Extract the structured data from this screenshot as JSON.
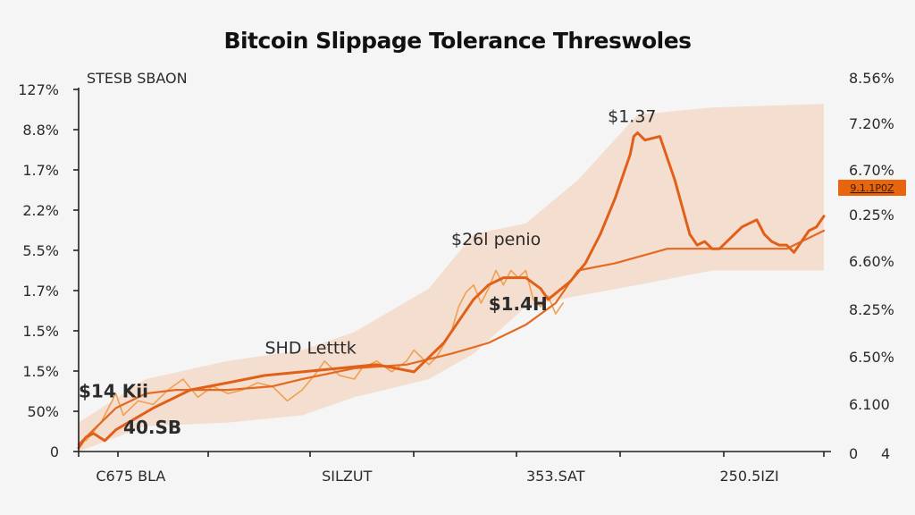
{
  "chart_data": {
    "type": "line",
    "title": "Bitcoin Slippage Tolerance Threswoles",
    "series_label": "STESB SBAON",
    "xlabel": "",
    "ylabel": "",
    "grid": false,
    "y_left_ticks": [
      "127%",
      "8.8%",
      "1.7%",
      "2.2%",
      "5.5%",
      "1.7%",
      "1.5%",
      "1.5%",
      "50%",
      "0"
    ],
    "y_right_ticks": [
      "8.56%",
      "7.20%",
      "6.70%",
      "0.25%",
      "6.60%",
      "8.25%",
      "6.50%",
      "6.100",
      "0"
    ],
    "y_right_extra": "4",
    "x_ticks": [
      "",
      "",
      "",
      "",
      "",
      "",
      "",
      "",
      ""
    ],
    "x_labels": [
      {
        "text": "C675 BLA",
        "at": 0.07
      },
      {
        "text": "SILZUT",
        "at": 0.36
      },
      {
        "text": "353.SAT",
        "at": 0.64
      },
      {
        "text": "250.5IZI",
        "at": 0.9
      }
    ],
    "x_range": [
      0,
      1
    ],
    "y_range": [
      0,
      1
    ],
    "series": [
      {
        "name": "trend",
        "role": "smoothed",
        "x": [
          0,
          0.02,
          0.05,
          0.09,
          0.13,
          0.2,
          0.26,
          0.3,
          0.37,
          0.44,
          0.5,
          0.55,
          0.6,
          0.64,
          0.67,
          0.72,
          0.79,
          0.84,
          0.92,
          0.95,
          1.0
        ],
        "y": [
          0.02,
          0.06,
          0.12,
          0.16,
          0.17,
          0.17,
          0.18,
          0.2,
          0.23,
          0.24,
          0.27,
          0.3,
          0.35,
          0.41,
          0.5,
          0.52,
          0.56,
          0.56,
          0.56,
          0.56,
          0.61
        ]
      },
      {
        "name": "price",
        "role": "primary",
        "x": [
          0,
          0.01,
          0.02,
          0.035,
          0.05,
          0.1,
          0.15,
          0.2,
          0.25,
          0.3,
          0.35,
          0.4,
          0.45,
          0.47,
          0.49,
          0.51,
          0.53,
          0.55,
          0.57,
          0.6,
          0.62,
          0.63,
          0.66,
          0.68,
          0.7,
          0.72,
          0.74,
          0.745,
          0.75,
          0.76,
          0.78,
          0.8,
          0.82,
          0.83,
          0.84,
          0.85,
          0.86,
          0.87,
          0.88,
          0.89,
          0.9,
          0.91,
          0.92,
          0.93,
          0.94,
          0.95,
          0.96,
          0.97,
          0.98,
          0.99,
          1.0
        ],
        "y": [
          0.01,
          0.04,
          0.05,
          0.03,
          0.06,
          0.12,
          0.17,
          0.19,
          0.21,
          0.22,
          0.23,
          0.24,
          0.22,
          0.26,
          0.3,
          0.36,
          0.42,
          0.46,
          0.48,
          0.48,
          0.45,
          0.42,
          0.47,
          0.52,
          0.6,
          0.7,
          0.82,
          0.87,
          0.88,
          0.86,
          0.87,
          0.75,
          0.6,
          0.57,
          0.58,
          0.56,
          0.56,
          0.58,
          0.6,
          0.62,
          0.63,
          0.64,
          0.6,
          0.58,
          0.57,
          0.57,
          0.55,
          0.58,
          0.61,
          0.62,
          0.65
        ]
      },
      {
        "name": "noise",
        "role": "volatile",
        "x": [
          0.01,
          0.03,
          0.05,
          0.06,
          0.08,
          0.1,
          0.12,
          0.14,
          0.16,
          0.18,
          0.2,
          0.22,
          0.24,
          0.26,
          0.28,
          0.3,
          0.32,
          0.33,
          0.35,
          0.37,
          0.38,
          0.4,
          0.42,
          0.44,
          0.45,
          0.46,
          0.47,
          0.48,
          0.5,
          0.51,
          0.52,
          0.53,
          0.54,
          0.55,
          0.56,
          0.57,
          0.58,
          0.59,
          0.6,
          0.61,
          0.62,
          0.63,
          0.64,
          0.65
        ],
        "y": [
          0.03,
          0.08,
          0.16,
          0.1,
          0.14,
          0.13,
          0.17,
          0.2,
          0.15,
          0.18,
          0.16,
          0.17,
          0.19,
          0.18,
          0.14,
          0.17,
          0.22,
          0.25,
          0.21,
          0.2,
          0.23,
          0.25,
          0.22,
          0.25,
          0.28,
          0.26,
          0.24,
          0.26,
          0.33,
          0.4,
          0.44,
          0.46,
          0.41,
          0.45,
          0.5,
          0.46,
          0.5,
          0.48,
          0.5,
          0.42,
          0.4,
          0.43,
          0.38,
          0.41
        ]
      }
    ],
    "band": {
      "name": "tolerance-band",
      "x": [
        0,
        0.09,
        0.2,
        0.3,
        0.37,
        0.47,
        0.53,
        0.6,
        0.67,
        0.75,
        0.85,
        1.0
      ],
      "upper": [
        0.08,
        0.2,
        0.25,
        0.28,
        0.33,
        0.45,
        0.6,
        0.63,
        0.75,
        0.93,
        0.95,
        0.96
      ],
      "lower": [
        0.0,
        0.07,
        0.08,
        0.1,
        0.15,
        0.2,
        0.27,
        0.4,
        0.43,
        0.46,
        0.5,
        0.5
      ]
    },
    "annotations": [
      {
        "text": "$1.37",
        "x": 0.71,
        "y": 0.91,
        "bold": false
      },
      {
        "text": "$26l penio",
        "x": 0.5,
        "y": 0.57,
        "bold": false
      },
      {
        "text": "$1.4H",
        "x": 0.55,
        "y": 0.39,
        "bold": true
      },
      {
        "text": "SHD Letttk",
        "x": 0.25,
        "y": 0.27,
        "bold": false
      },
      {
        "text": "$14 Kii",
        "x": 0.0,
        "y": 0.15,
        "bold": true
      },
      {
        "text": "40.SB",
        "x": 0.06,
        "y": 0.05,
        "bold": true
      }
    ],
    "right_badge": {
      "text": "9.1.1P0Z",
      "color": "#e8650f"
    },
    "colors": {
      "primary": "#e0601a",
      "trend": "#e46a22",
      "noise": "#f0a050",
      "band": "#f4dccb",
      "axis": "#222222"
    },
    "legend": "none"
  }
}
